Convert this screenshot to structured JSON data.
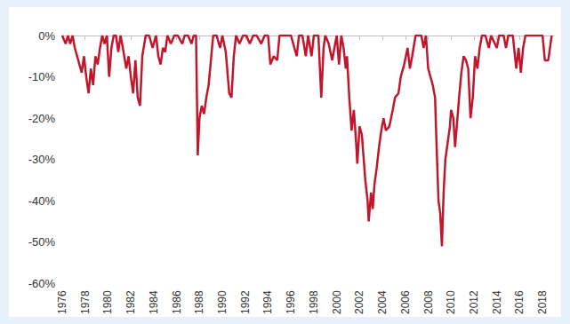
{
  "chart_data": {
    "type": "line",
    "color": "#c0172c",
    "grid": false,
    "xlim": [
      1976,
      2019
    ],
    "xticks": [
      1976,
      1978,
      1980,
      1982,
      1984,
      1986,
      1988,
      1990,
      1992,
      1994,
      1996,
      1998,
      2000,
      2002,
      2004,
      2006,
      2008,
      2010,
      2012,
      2014,
      2016,
      2018
    ],
    "ylim": [
      -60,
      0
    ],
    "yticks": [
      {
        "value": 0,
        "label": "0%"
      },
      {
        "value": -10,
        "label": "-10%"
      },
      {
        "value": -20,
        "label": "-20%"
      },
      {
        "value": -30,
        "label": "-30%"
      },
      {
        "value": -40,
        "label": "-40%"
      },
      {
        "value": -50,
        "label": "-50%"
      },
      {
        "value": -60,
        "label": "-60%"
      }
    ],
    "x": [
      1976.0,
      1976.3,
      1976.5,
      1976.7,
      1976.9,
      1977.1,
      1977.4,
      1977.7,
      1977.9,
      1978.1,
      1978.3,
      1978.5,
      1978.7,
      1978.9,
      1979.1,
      1979.3,
      1979.5,
      1979.7,
      1979.9,
      1980.1,
      1980.3,
      1980.5,
      1980.7,
      1980.9,
      1981.1,
      1981.3,
      1981.6,
      1981.8,
      1982.0,
      1982.2,
      1982.4,
      1982.6,
      1982.8,
      1983.0,
      1983.3,
      1983.6,
      1983.9,
      1984.2,
      1984.4,
      1984.6,
      1984.8,
      1985.0,
      1985.2,
      1985.5,
      1985.8,
      1986.1,
      1986.5,
      1986.7,
      1987.0,
      1987.3,
      1987.5,
      1987.7,
      1987.85,
      1988.0,
      1988.2,
      1988.4,
      1988.6,
      1988.8,
      1989.0,
      1989.2,
      1989.5,
      1989.8,
      1990.0,
      1990.3,
      1990.6,
      1990.8,
      1991.0,
      1991.2,
      1991.5,
      1991.8,
      1992.1,
      1992.4,
      1992.7,
      1993.0,
      1993.4,
      1993.7,
      1994.0,
      1994.2,
      1994.5,
      1994.8,
      1995.0,
      1995.5,
      1996.0,
      1996.3,
      1996.5,
      1996.7,
      1997.0,
      1997.3,
      1997.5,
      1997.8,
      1998.0,
      1998.4,
      1998.65,
      1998.85,
      1999.0,
      1999.3,
      1999.6,
      1999.8,
      2000.0,
      2000.2,
      2000.4,
      2000.6,
      2000.8,
      2000.9,
      2001.1,
      2001.3,
      2001.5,
      2001.7,
      2001.8,
      2002.0,
      2002.2,
      2002.5,
      2002.7,
      2002.8,
      2003.0,
      2003.15,
      2003.3,
      2003.5,
      2003.7,
      2003.9,
      2004.1,
      2004.3,
      2004.6,
      2004.9,
      2005.1,
      2005.4,
      2005.6,
      2005.9,
      2006.2,
      2006.4,
      2006.6,
      2006.9,
      2007.2,
      2007.4,
      2007.6,
      2007.8,
      2008.0,
      2008.2,
      2008.4,
      2008.6,
      2008.75,
      2008.9,
      2009.05,
      2009.2,
      2009.35,
      2009.5,
      2009.7,
      2009.9,
      2010.0,
      2010.2,
      2010.35,
      2010.5,
      2010.7,
      2010.9,
      2011.1,
      2011.3,
      2011.5,
      2011.7,
      2011.9,
      2012.1,
      2012.3,
      2012.5,
      2012.7,
      2013.0,
      2013.3,
      2013.5,
      2014.0,
      2014.2,
      2014.6,
      2014.8,
      2015.0,
      2015.4,
      2015.7,
      2015.9,
      2016.1,
      2016.3,
      2016.5,
      2017.0,
      2017.5,
      2018.0,
      2018.2,
      2018.5,
      2018.7,
      2018.8
    ],
    "values": [
      0,
      -2,
      0,
      -2,
      0,
      -3,
      -6,
      -9,
      -5,
      -10,
      -14,
      -8,
      -12,
      -5,
      -7,
      -3,
      0,
      -2,
      0,
      -10,
      -3,
      0,
      0,
      -4,
      0,
      -3,
      -8,
      -5,
      -10,
      -14,
      -6,
      -15,
      -17,
      -5,
      0,
      0,
      -3,
      0,
      -5,
      -7,
      -3,
      -4,
      0,
      -2,
      0,
      0,
      -2,
      0,
      0,
      -2,
      0,
      0,
      -29,
      -20,
      -17,
      -19,
      -15,
      -12,
      -6,
      0,
      0,
      -3,
      0,
      -4,
      -14,
      -15,
      -5,
      0,
      -2,
      0,
      0,
      -2,
      0,
      0,
      -2,
      0,
      0,
      -7,
      -5,
      -6,
      0,
      0,
      0,
      -3,
      -5,
      0,
      0,
      -5,
      0,
      -5,
      0,
      0,
      -15,
      -3,
      0,
      -2,
      -6,
      -3,
      0,
      -7,
      0,
      -3,
      -8,
      -5,
      -15,
      -23,
      -18,
      -26,
      -31,
      -22,
      -24,
      -35,
      -40,
      -45,
      -38,
      -42,
      -36,
      -32,
      -27,
      -23,
      -20,
      -23,
      -22,
      -18,
      -15,
      -14,
      -10,
      -7,
      -3,
      -8,
      -5,
      0,
      0,
      0,
      -3,
      0,
      -8,
      -10,
      -12,
      -15,
      -28,
      -40,
      -43,
      -51,
      -38,
      -30,
      -26,
      -22,
      -18,
      -20,
      -27,
      -22,
      -15,
      -9,
      -5,
      -6,
      -8,
      -20,
      -15,
      -5,
      -8,
      -3,
      0,
      0,
      -3,
      0,
      -3,
      0,
      0,
      -3,
      0,
      0,
      -8,
      -3,
      -9,
      -3,
      0,
      0,
      0,
      0,
      -6,
      -6,
      -2,
      0
    ]
  }
}
